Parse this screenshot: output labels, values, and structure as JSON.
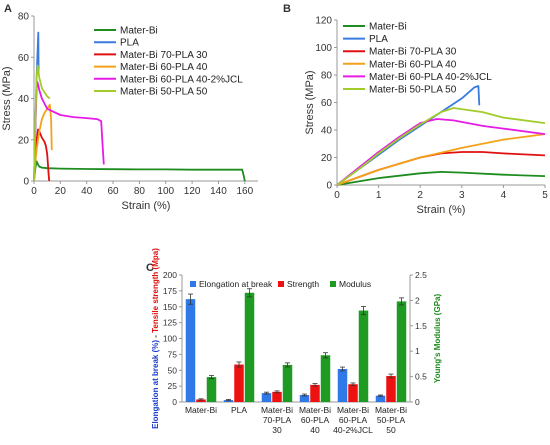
{
  "panels": {
    "a": "A",
    "b": "B",
    "c": "C"
  },
  "chart_data": [
    {
      "id": "A",
      "type": "line",
      "xlabel": "Strain (%)",
      "ylabel": "Stress (MPa)",
      "xlim": [
        0,
        170
      ],
      "ylim": [
        0,
        80
      ],
      "xticks": [
        0,
        20,
        40,
        60,
        80,
        100,
        120,
        140,
        160
      ],
      "yticks": [
        0,
        20,
        40,
        60,
        80
      ],
      "legend_position": "top-right",
      "series": [
        {
          "name": "Mater-Bi",
          "color": "#1e8c1e",
          "x": [
            0,
            1,
            2,
            3,
            4,
            6,
            10,
            20,
            40,
            60,
            80,
            100,
            120,
            140,
            158,
            159,
            160
          ],
          "y": [
            0,
            6,
            9.5,
            8,
            7,
            6.5,
            6.2,
            6,
            5.8,
            5.7,
            5.6,
            5.6,
            5.5,
            5.5,
            5.5,
            3,
            0
          ]
        },
        {
          "name": "PLA",
          "color": "#3a7be0",
          "x": [
            0,
            1,
            2,
            3,
            3.3,
            3.4,
            3.5
          ],
          "y": [
            0,
            25,
            50,
            68,
            72,
            60,
            52
          ]
        },
        {
          "name": "Mater-Bi 70-PLA 30",
          "color": "#e01010",
          "x": [
            0,
            1,
            2,
            3,
            4,
            6,
            8,
            9,
            10,
            10.5,
            11,
            11.5
          ],
          "y": [
            0,
            12,
            20,
            25,
            24,
            21,
            19,
            17,
            13,
            9,
            4,
            0
          ]
        },
        {
          "name": "Mater-Bi 60-PLA 40",
          "color": "#f5a21a",
          "x": [
            0,
            1,
            2,
            3,
            4,
            6,
            8,
            10,
            12,
            13,
            13.5
          ],
          "y": [
            0,
            9,
            15,
            20,
            24,
            30,
            33,
            35,
            37,
            30,
            15
          ]
        },
        {
          "name": "Mater-Bi 60-PLA 40-2%JCL",
          "color": "#e61be6",
          "x": [
            0,
            1,
            2,
            2.5,
            3,
            4,
            6,
            10,
            20,
            30,
            40,
            48,
            51,
            52,
            53
          ],
          "y": [
            0,
            25,
            45,
            48,
            47,
            44,
            40,
            35,
            32,
            31,
            30.5,
            30,
            29,
            18,
            8
          ]
        },
        {
          "name": "Mater-Bi 50-PLA 50",
          "color": "#a2cc2a",
          "x": [
            0,
            1,
            2,
            2.7,
            3,
            4,
            6,
            8,
            10,
            12
          ],
          "y": [
            0,
            28,
            50,
            56,
            55,
            50,
            45,
            43,
            41,
            40
          ]
        }
      ]
    },
    {
      "id": "B",
      "type": "line",
      "xlabel": "Strain (%)",
      "ylabel": "Stress (MPa)",
      "xlim": [
        0,
        5
      ],
      "ylim": [
        0,
        120
      ],
      "xticks": [
        0,
        1,
        2,
        3,
        4,
        5
      ],
      "yticks": [
        0,
        20,
        40,
        60,
        80,
        100,
        120
      ],
      "legend_position": "top-left",
      "series": [
        {
          "name": "Mater-Bi",
          "color": "#1e8c1e",
          "x": [
            0,
            1,
            2,
            2.5,
            3,
            4,
            5
          ],
          "y": [
            0,
            5,
            8.5,
            9.5,
            9,
            7.5,
            6.5
          ]
        },
        {
          "name": "PLA",
          "color": "#3a7be0",
          "x": [
            0,
            0.5,
            1,
            1.5,
            2,
            2.5,
            3,
            3.3,
            3.4,
            3.42
          ],
          "y": [
            0,
            11,
            22,
            33,
            43,
            53,
            63,
            71,
            72,
            58
          ]
        },
        {
          "name": "Mater-Bi 70-PLA 30",
          "color": "#e01010",
          "x": [
            0,
            1,
            2,
            2.5,
            3,
            3.5,
            4,
            5
          ],
          "y": [
            0,
            11,
            20,
            23,
            24,
            24,
            23,
            21.5
          ]
        },
        {
          "name": "Mater-Bi 60-PLA 40",
          "color": "#f5a21a",
          "x": [
            0,
            1,
            2,
            3,
            4,
            5
          ],
          "y": [
            0,
            11,
            20,
            27,
            33,
            37
          ]
        },
        {
          "name": "Mater-Bi 60-PLA 40-2%JCL",
          "color": "#e61be6",
          "x": [
            0,
            0.5,
            1,
            1.5,
            2,
            2.4,
            2.8,
            3.5,
            4,
            5
          ],
          "y": [
            0,
            12,
            24,
            35,
            45,
            48,
            47,
            43,
            41,
            37
          ]
        },
        {
          "name": "Mater-Bi 50-PLA 50",
          "color": "#a2cc2a",
          "x": [
            0,
            0.5,
            1,
            1.5,
            2,
            2.5,
            2.8,
            3.5,
            4,
            5
          ],
          "y": [
            0,
            11,
            23,
            34,
            44,
            53,
            56,
            53,
            49,
            45
          ]
        }
      ]
    },
    {
      "id": "C",
      "type": "bar",
      "ylabel_parts": [
        "Elongation at break (%)",
        " - ",
        "Tensile strength (Mpa)"
      ],
      "ylabel_colors": [
        "#1a3ccf",
        "#333333",
        "#e01010"
      ],
      "y2label": "Young's Modulus (GPa)",
      "y2label_color": "#1e8c1e",
      "ylim": [
        0,
        200
      ],
      "yticks": [
        0,
        25,
        50,
        75,
        100,
        125,
        150,
        175,
        200
      ],
      "y2lim": [
        0,
        2.5
      ],
      "y2ticks": [
        "0",
        "0.5",
        "1",
        "1.5",
        "2",
        "2.5"
      ],
      "y2tick_values": [
        0,
        0.5,
        1,
        1.5,
        2,
        2.5
      ],
      "legend_position": "top",
      "categories": [
        [
          "Mater-Bi"
        ],
        [
          "PLA"
        ],
        [
          "Mater-Bi",
          "70-PLA",
          "30"
        ],
        [
          "Mater-Bi",
          "60-PLA",
          "40"
        ],
        [
          "Mater-Bi",
          "60-PLA",
          "40-2%JCL"
        ],
        [
          "Mater-Bi",
          "50-PLA",
          "50"
        ]
      ],
      "series": [
        {
          "name": "Elongation at break",
          "color": "#2f78e8",
          "axis": "left",
          "values": [
            162,
            3,
            14,
            11,
            52,
            10
          ],
          "errors": [
            8,
            1,
            1.5,
            1.5,
            3,
            1
          ]
        },
        {
          "name": "Strength",
          "color": "#ee1111",
          "axis": "left",
          "values": [
            4,
            59,
            16,
            27,
            28,
            41
          ],
          "errors": [
            1,
            4,
            1.5,
            2,
            2,
            3
          ]
        },
        {
          "name": "Modulus",
          "color": "#1f9a22",
          "axis": "right",
          "values": [
            0.49,
            2.15,
            0.73,
            0.92,
            1.8,
            1.98
          ],
          "errors": [
            0.03,
            0.08,
            0.04,
            0.05,
            0.08,
            0.07
          ]
        }
      ]
    }
  ]
}
